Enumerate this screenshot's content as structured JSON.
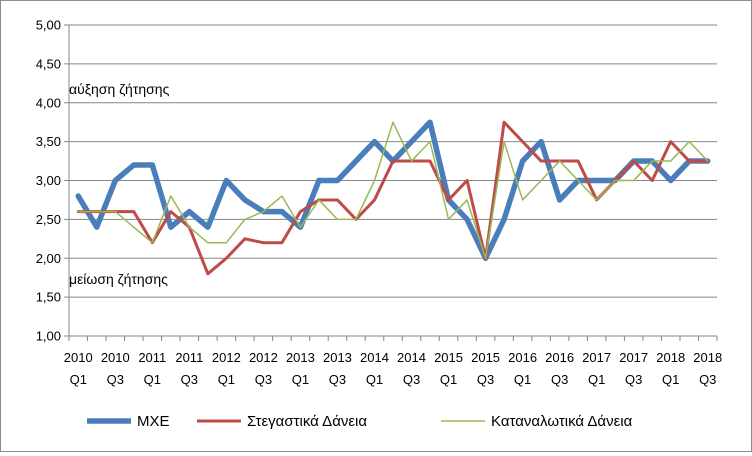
{
  "chart_data": {
    "type": "line",
    "title": "",
    "xlabel": "",
    "ylabel": "",
    "ylim": [
      1.0,
      5.0
    ],
    "y_ticks": [
      "1,00",
      "1,50",
      "2,00",
      "2,50",
      "3,00",
      "3,50",
      "4,00",
      "4,50",
      "5,00"
    ],
    "y_tick_values": [
      1.0,
      1.5,
      2.0,
      2.5,
      3.0,
      3.5,
      4.0,
      4.5,
      5.0
    ],
    "grid": "horizontal",
    "legend_position": "bottom",
    "annotations": {
      "upper": "αύξηση ζήτησης",
      "lower": "μείωση ζήτησης"
    },
    "x_tick_labels": [
      {
        "year": "2010",
        "quarter": "Q1"
      },
      {
        "year": "2010",
        "quarter": "Q3"
      },
      {
        "year": "2011",
        "quarter": "Q1"
      },
      {
        "year": "2011",
        "quarter": "Q3"
      },
      {
        "year": "2012",
        "quarter": "Q1"
      },
      {
        "year": "2012",
        "quarter": "Q3"
      },
      {
        "year": "2013",
        "quarter": "Q1"
      },
      {
        "year": "2013",
        "quarter": "Q3"
      },
      {
        "year": "2014",
        "quarter": "Q1"
      },
      {
        "year": "2014",
        "quarter": "Q3"
      },
      {
        "year": "2015",
        "quarter": "Q1"
      },
      {
        "year": "2015",
        "quarter": "Q3"
      },
      {
        "year": "2016",
        "quarter": "Q1"
      },
      {
        "year": "2016",
        "quarter": "Q3"
      },
      {
        "year": "2017",
        "quarter": "Q1"
      },
      {
        "year": "2017",
        "quarter": "Q3"
      },
      {
        "year": "2018",
        "quarter": "Q1"
      },
      {
        "year": "2018",
        "quarter": "Q3"
      }
    ],
    "categories": [
      "2010 Q1",
      "2010 Q2",
      "2010 Q3",
      "2010 Q4",
      "2011 Q1",
      "2011 Q2",
      "2011 Q3",
      "2011 Q4",
      "2012 Q1",
      "2012 Q2",
      "2012 Q3",
      "2012 Q4",
      "2013 Q1",
      "2013 Q2",
      "2013 Q3",
      "2013 Q4",
      "2014 Q1",
      "2014 Q2",
      "2014 Q3",
      "2014 Q4",
      "2015 Q1",
      "2015 Q2",
      "2015 Q3",
      "2015 Q4",
      "2016 Q1",
      "2016 Q2",
      "2016 Q3",
      "2016 Q4",
      "2017 Q1",
      "2017 Q2",
      "2017 Q3",
      "2017 Q4",
      "2018 Q1",
      "2018 Q2",
      "2018 Q3"
    ],
    "series": [
      {
        "name": "ΜΧΕ",
        "color": "#4a7ebb",
        "values": [
          2.8,
          2.4,
          3.0,
          3.2,
          3.2,
          2.4,
          2.6,
          2.4,
          3.0,
          2.75,
          2.6,
          2.6,
          2.4,
          3.0,
          3.0,
          3.25,
          3.5,
          3.25,
          3.5,
          3.75,
          2.75,
          2.5,
          2.0,
          2.5,
          3.25,
          3.5,
          2.75,
          3.0,
          3.0,
          3.0,
          3.25,
          3.25,
          3.0,
          3.25,
          3.25
        ]
      },
      {
        "name": "Στεγαστικά Δάνεια",
        "color": "#be4b48",
        "values": [
          2.6,
          2.6,
          2.6,
          2.6,
          2.2,
          2.6,
          2.4,
          1.8,
          2.0,
          2.25,
          2.2,
          2.2,
          2.6,
          2.75,
          2.75,
          2.5,
          2.75,
          3.25,
          3.25,
          3.25,
          2.75,
          3.0,
          2.0,
          3.75,
          3.5,
          3.25,
          3.25,
          3.25,
          2.75,
          3.0,
          3.25,
          3.0,
          3.5,
          3.25,
          3.25
        ]
      },
      {
        "name": "Καταναλωτικά Δάνεια",
        "color": "#98b954",
        "values": [
          2.6,
          2.6,
          2.6,
          2.4,
          2.2,
          2.8,
          2.4,
          2.2,
          2.2,
          2.5,
          2.6,
          2.8,
          2.4,
          2.75,
          2.5,
          2.5,
          3.0,
          3.75,
          3.25,
          3.5,
          2.5,
          2.75,
          2.0,
          3.5,
          2.75,
          3.0,
          3.25,
          3.0,
          2.75,
          3.0,
          3.0,
          3.25,
          3.25,
          3.5,
          3.25
        ]
      }
    ]
  }
}
